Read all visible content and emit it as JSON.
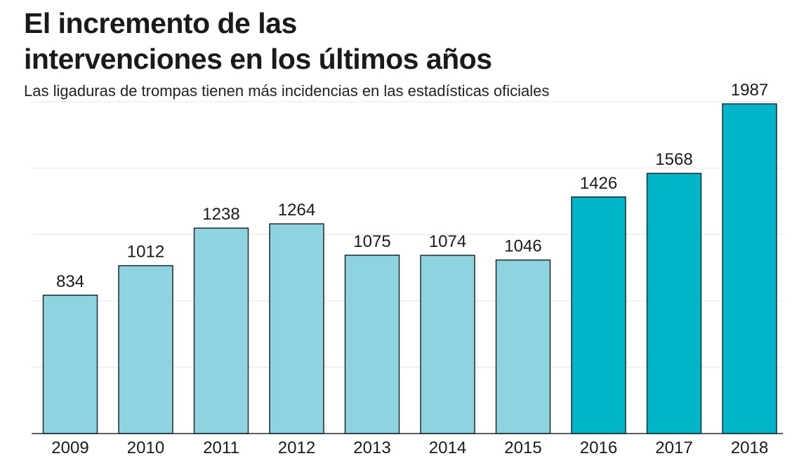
{
  "title_lines": [
    "El incremento de las",
    "intervenciones en los últimos años"
  ],
  "subtitle": "Las ligaduras de trompas tienen más incidencias en las estadísticas oficiales",
  "chart_data": {
    "type": "bar",
    "categories": [
      "2009",
      "2010",
      "2011",
      "2012",
      "2013",
      "2014",
      "2015",
      "2016",
      "2017",
      "2018"
    ],
    "values": [
      834,
      1012,
      1238,
      1264,
      1075,
      1074,
      1046,
      1426,
      1568,
      1987
    ],
    "ylim": [
      0,
      2000
    ],
    "grid": true,
    "colors": {
      "light_bar": "#8dd3e0",
      "dark_bar": "#00b5c9",
      "bar_outline": "#1d2a2e",
      "gridline": "#e6e6e6"
    },
    "highlight_from_index": 7
  }
}
